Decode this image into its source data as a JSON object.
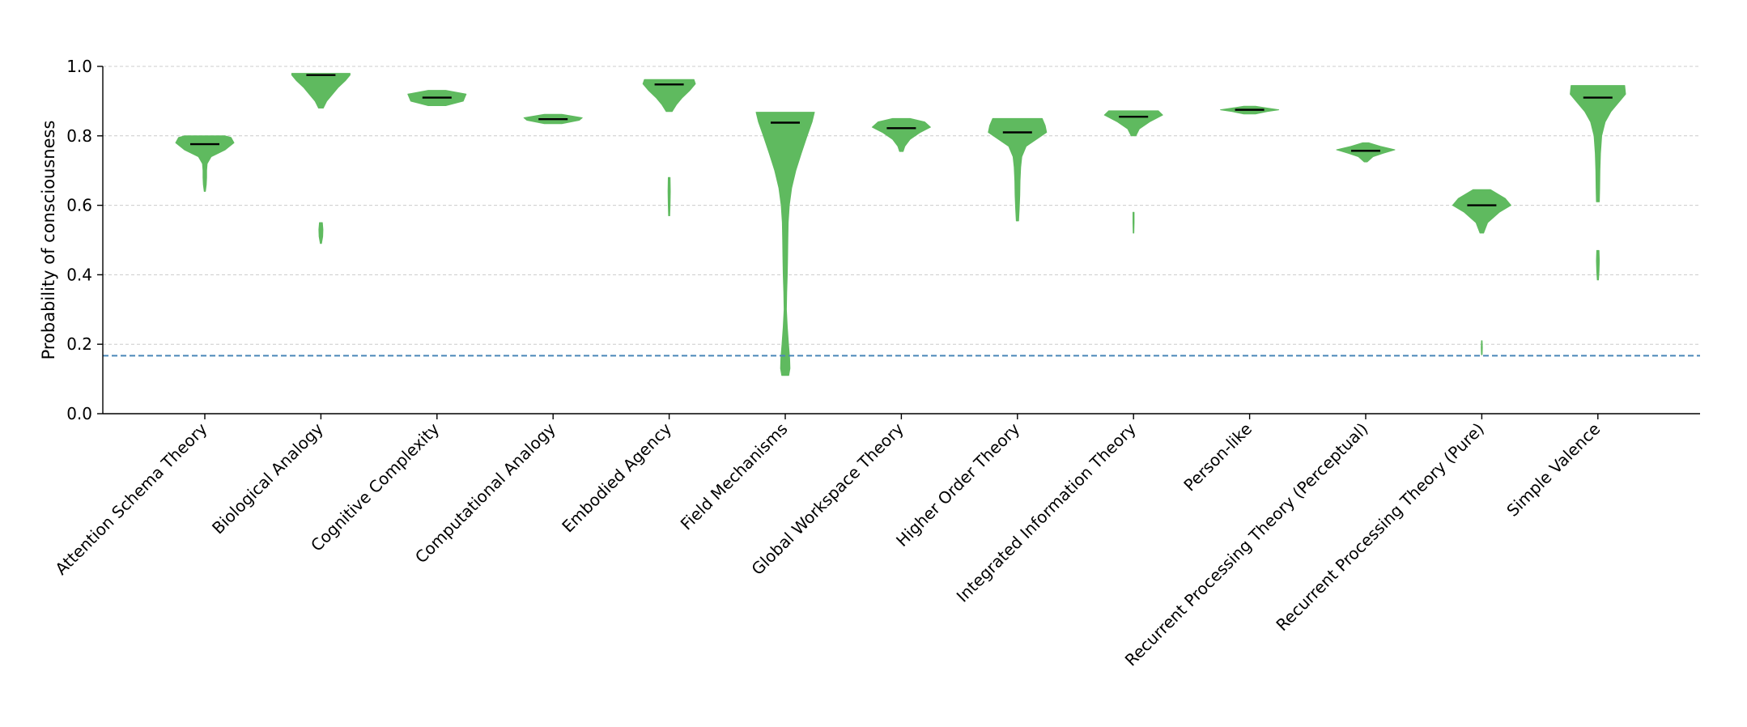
{
  "chart_data": {
    "type": "violin",
    "title": "",
    "xlabel": "",
    "ylabel": "Probability of consciousness",
    "ylim": [
      0.0,
      1.0
    ],
    "yticks": [
      "0.0",
      "0.2",
      "0.4",
      "0.6",
      "0.8",
      "1.0"
    ],
    "grid": "horizontal-dashed",
    "reference_line": {
      "value": 0.167,
      "color": "#4a86b8",
      "style": "dashed"
    },
    "violin_color": "#5fba5f",
    "median_color": "#000000",
    "categories": [
      "Attention Schema Theory",
      "Biological Analogy",
      "Cognitive Complexity",
      "Computational Analogy",
      "Embodied Agency",
      "Field Mechanisms",
      "Global Workspace Theory",
      "Higher Order Theory",
      "Integrated Information Theory",
      "Person-like",
      "Recurrent Processing Theory (Perceptual)",
      "Recurrent Processing Theory (Pure)",
      "Simple Valence"
    ],
    "series": [
      {
        "name": "Attention Schema Theory",
        "median": 0.776,
        "min": 0.64,
        "max": 0.8,
        "profile": [
          [
            0.64,
            0.02
          ],
          [
            0.66,
            0.05
          ],
          [
            0.68,
            0.06
          ],
          [
            0.7,
            0.06
          ],
          [
            0.72,
            0.08
          ],
          [
            0.74,
            0.22
          ],
          [
            0.76,
            0.7
          ],
          [
            0.78,
            1.0
          ],
          [
            0.795,
            0.9
          ],
          [
            0.8,
            0.7
          ]
        ]
      },
      {
        "name": "Biological Analogy",
        "median": 0.975,
        "min": 0.49,
        "max": 0.98,
        "profile": [
          [
            0.49,
            0.02
          ],
          [
            0.51,
            0.06
          ],
          [
            0.53,
            0.07
          ],
          [
            0.55,
            0.05
          ],
          [
            0.57,
            0.0
          ],
          [
            0.86,
            0.0
          ],
          [
            0.88,
            0.08
          ],
          [
            0.9,
            0.2
          ],
          [
            0.92,
            0.4
          ],
          [
            0.94,
            0.6
          ],
          [
            0.96,
            0.85
          ],
          [
            0.975,
            1.0
          ],
          [
            0.98,
            1.0
          ]
        ]
      },
      {
        "name": "Cognitive Complexity",
        "median": 0.91,
        "min": 0.887,
        "max": 0.931,
        "profile": [
          [
            0.887,
            0.3
          ],
          [
            0.9,
            0.9
          ],
          [
            0.91,
            0.95
          ],
          [
            0.92,
            1.0
          ],
          [
            0.931,
            0.3
          ]
        ]
      },
      {
        "name": "Computational Analogy",
        "median": 0.848,
        "min": 0.835,
        "max": 0.862,
        "profile": [
          [
            0.835,
            0.3
          ],
          [
            0.845,
            0.9
          ],
          [
            0.852,
            1.0
          ],
          [
            0.862,
            0.3
          ]
        ]
      },
      {
        "name": "Embodied Agency",
        "median": 0.948,
        "min": 0.57,
        "max": 0.962,
        "profile": [
          [
            0.57,
            0.02
          ],
          [
            0.6,
            0.03
          ],
          [
            0.64,
            0.04
          ],
          [
            0.68,
            0.03
          ],
          [
            0.7,
            0.0
          ],
          [
            0.86,
            0.0
          ],
          [
            0.87,
            0.1
          ],
          [
            0.89,
            0.25
          ],
          [
            0.91,
            0.45
          ],
          [
            0.93,
            0.7
          ],
          [
            0.95,
            0.9
          ],
          [
            0.962,
            0.85
          ]
        ]
      },
      {
        "name": "Field Mechanisms",
        "median": 0.838,
        "min": 0.11,
        "max": 0.868,
        "profile": [
          [
            0.11,
            0.12
          ],
          [
            0.13,
            0.16
          ],
          [
            0.16,
            0.15
          ],
          [
            0.2,
            0.11
          ],
          [
            0.25,
            0.07
          ],
          [
            0.3,
            0.04
          ],
          [
            0.35,
            0.05
          ],
          [
            0.4,
            0.07
          ],
          [
            0.45,
            0.08
          ],
          [
            0.5,
            0.09
          ],
          [
            0.55,
            0.1
          ],
          [
            0.6,
            0.14
          ],
          [
            0.65,
            0.22
          ],
          [
            0.7,
            0.36
          ],
          [
            0.75,
            0.55
          ],
          [
            0.8,
            0.75
          ],
          [
            0.84,
            0.92
          ],
          [
            0.868,
            1.0
          ]
        ]
      },
      {
        "name": "Global Workspace Theory",
        "median": 0.822,
        "min": 0.755,
        "max": 0.85,
        "profile": [
          [
            0.755,
            0.06
          ],
          [
            0.77,
            0.12
          ],
          [
            0.79,
            0.3
          ],
          [
            0.81,
            0.65
          ],
          [
            0.825,
            1.0
          ],
          [
            0.84,
            0.8
          ],
          [
            0.85,
            0.3
          ]
        ]
      },
      {
        "name": "Higher Order Theory",
        "median": 0.81,
        "min": 0.555,
        "max": 0.85,
        "profile": [
          [
            0.555,
            0.04
          ],
          [
            0.59,
            0.06
          ],
          [
            0.63,
            0.08
          ],
          [
            0.67,
            0.09
          ],
          [
            0.71,
            0.11
          ],
          [
            0.74,
            0.15
          ],
          [
            0.77,
            0.3
          ],
          [
            0.79,
            0.65
          ],
          [
            0.81,
            1.0
          ],
          [
            0.83,
            0.95
          ],
          [
            0.85,
            0.85
          ]
        ]
      },
      {
        "name": "Integrated Information Theory",
        "median": 0.855,
        "min": 0.52,
        "max": 0.872,
        "profile": [
          [
            0.52,
            0.01
          ],
          [
            0.55,
            0.02
          ],
          [
            0.58,
            0.02
          ],
          [
            0.6,
            0.0
          ],
          [
            0.79,
            0.0
          ],
          [
            0.8,
            0.08
          ],
          [
            0.82,
            0.2
          ],
          [
            0.84,
            0.55
          ],
          [
            0.86,
            1.0
          ],
          [
            0.872,
            0.85
          ]
        ]
      },
      {
        "name": "Person-like",
        "median": 0.875,
        "min": 0.863,
        "max": 0.885,
        "profile": [
          [
            0.863,
            0.2
          ],
          [
            0.87,
            0.6
          ],
          [
            0.875,
            1.0
          ],
          [
            0.88,
            0.6
          ],
          [
            0.885,
            0.2
          ]
        ]
      },
      {
        "name": "Recurrent Processing Theory (Perceptual)",
        "median": 0.757,
        "min": 0.725,
        "max": 0.78,
        "profile": [
          [
            0.725,
            0.05
          ],
          [
            0.74,
            0.25
          ],
          [
            0.75,
            0.6
          ],
          [
            0.76,
            1.0
          ],
          [
            0.77,
            0.5
          ],
          [
            0.78,
            0.1
          ]
        ]
      },
      {
        "name": "Recurrent Processing Theory (Pure)",
        "median": 0.6,
        "min": 0.17,
        "max": 0.645,
        "profile": [
          [
            0.17,
            0.01
          ],
          [
            0.19,
            0.02
          ],
          [
            0.21,
            0.01
          ],
          [
            0.23,
            0.0
          ],
          [
            0.51,
            0.0
          ],
          [
            0.52,
            0.06
          ],
          [
            0.55,
            0.2
          ],
          [
            0.58,
            0.6
          ],
          [
            0.6,
            1.0
          ],
          [
            0.62,
            0.8
          ],
          [
            0.645,
            0.3
          ]
        ]
      },
      {
        "name": "Simple Valence",
        "median": 0.91,
        "min": 0.385,
        "max": 0.945,
        "profile": [
          [
            0.385,
            0.02
          ],
          [
            0.41,
            0.04
          ],
          [
            0.44,
            0.05
          ],
          [
            0.47,
            0.04
          ],
          [
            0.49,
            0.0
          ],
          [
            0.6,
            0.0
          ],
          [
            0.61,
            0.05
          ],
          [
            0.65,
            0.06
          ],
          [
            0.7,
            0.07
          ],
          [
            0.75,
            0.09
          ],
          [
            0.8,
            0.13
          ],
          [
            0.84,
            0.25
          ],
          [
            0.87,
            0.45
          ],
          [
            0.9,
            0.75
          ],
          [
            0.92,
            0.95
          ],
          [
            0.945,
            0.92
          ]
        ]
      }
    ]
  }
}
